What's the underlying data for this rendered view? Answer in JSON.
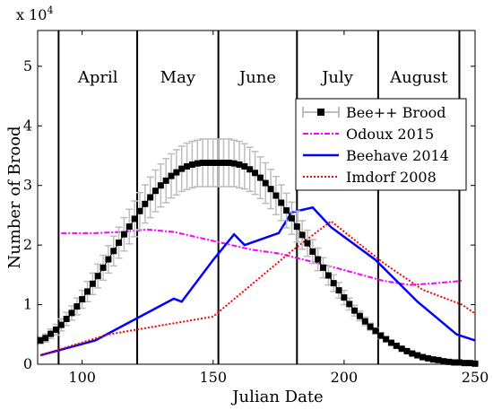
{
  "chart_data": {
    "type": "line",
    "xlabel": "Julian Date",
    "ylabel": "Number of Brood",
    "y_exponent": "x 10",
    "y_exponent_power": "4",
    "xlim": [
      83,
      250
    ],
    "ylim": [
      0,
      5.6
    ],
    "x_ticks": [
      100,
      150,
      200,
      250
    ],
    "y_ticks": [
      0,
      1,
      2,
      3,
      4,
      5
    ],
    "month_boundaries": [
      91,
      121,
      152,
      182,
      213,
      244
    ],
    "months": [
      {
        "label": "April",
        "x": 106
      },
      {
        "label": "May",
        "x": 136.5
      },
      {
        "label": "June",
        "x": 167
      },
      {
        "label": "July",
        "x": 197.5
      },
      {
        "label": "August",
        "x": 228.5
      }
    ],
    "legend_position": "top-right",
    "series": [
      {
        "name": "Bee++ Brood",
        "color": "#000000",
        "style": "squares-errorbars",
        "errorbar_color": "#bdbdbd",
        "x": [
          84,
          86,
          88,
          90,
          92,
          94,
          96,
          98,
          100,
          102,
          104,
          106,
          108,
          110,
          112,
          114,
          116,
          118,
          120,
          122,
          124,
          126,
          128,
          130,
          132,
          134,
          136,
          138,
          140,
          142,
          144,
          146,
          148,
          150,
          152,
          154,
          156,
          158,
          160,
          162,
          164,
          166,
          168,
          170,
          172,
          174,
          176,
          178,
          180,
          182,
          184,
          186,
          188,
          190,
          192,
          194,
          196,
          198,
          200,
          202,
          204,
          206,
          208,
          210,
          212,
          214,
          216,
          218,
          220,
          222,
          224,
          226,
          228,
          230,
          232,
          234,
          236,
          238,
          240,
          242,
          244,
          246,
          248,
          250
        ],
        "y": [
          0.4,
          0.44,
          0.51,
          0.58,
          0.66,
          0.76,
          0.86,
          0.97,
          1.09,
          1.22,
          1.35,
          1.48,
          1.62,
          1.76,
          1.9,
          2.04,
          2.18,
          2.31,
          2.44,
          2.57,
          2.69,
          2.8,
          2.91,
          3.0,
          3.08,
          3.16,
          3.22,
          3.28,
          3.32,
          3.35,
          3.37,
          3.38,
          3.38,
          3.38,
          3.38,
          3.38,
          3.38,
          3.37,
          3.35,
          3.32,
          3.27,
          3.21,
          3.13,
          3.04,
          2.94,
          2.83,
          2.71,
          2.58,
          2.45,
          2.31,
          2.17,
          2.03,
          1.89,
          1.76,
          1.62,
          1.49,
          1.36,
          1.24,
          1.12,
          1.01,
          0.9,
          0.81,
          0.72,
          0.63,
          0.56,
          0.48,
          0.42,
          0.36,
          0.31,
          0.26,
          0.22,
          0.18,
          0.15,
          0.12,
          0.1,
          0.08,
          0.07,
          0.05,
          0.04,
          0.03,
          0.03,
          0.02,
          0.02,
          0.01
        ],
        "err": [
          0.06,
          0.07,
          0.08,
          0.09,
          0.1,
          0.11,
          0.12,
          0.14,
          0.15,
          0.17,
          0.18,
          0.2,
          0.21,
          0.23,
          0.25,
          0.26,
          0.28,
          0.29,
          0.3,
          0.31,
          0.32,
          0.34,
          0.35,
          0.36,
          0.37,
          0.37,
          0.38,
          0.38,
          0.39,
          0.39,
          0.39,
          0.4,
          0.4,
          0.4,
          0.4,
          0.4,
          0.4,
          0.39,
          0.39,
          0.38,
          0.37,
          0.36,
          0.35,
          0.34,
          0.33,
          0.32,
          0.3,
          0.29,
          0.27,
          0.26,
          0.24,
          0.22,
          0.2,
          0.19,
          0.17,
          0.16,
          0.14,
          0.13,
          0.12,
          0.1,
          0.09,
          0.08,
          0.07,
          0.06,
          0.05,
          0.05,
          0.04,
          0.03,
          0.03,
          0.02,
          0.02,
          0.02,
          0.01,
          0.01,
          0.01,
          0.01,
          0.01,
          0.01,
          0.01,
          0.01,
          0.01,
          0.01,
          0.01,
          0.01
        ]
      },
      {
        "name": "Odoux 2015",
        "color": "#ff00ff",
        "style": "dashdot",
        "x": [
          92,
          105,
          115,
          125,
          135,
          145,
          155,
          165,
          175,
          185,
          195,
          205,
          215,
          225,
          235,
          245
        ],
        "y": [
          2.2,
          2.2,
          2.22,
          2.26,
          2.22,
          2.12,
          2.02,
          1.92,
          1.86,
          1.75,
          1.64,
          1.52,
          1.4,
          1.33,
          1.36,
          1.4
        ]
      },
      {
        "name": "Beehave 2014",
        "color": "#0000ff",
        "style": "solid",
        "x": [
          84,
          105,
          135,
          138,
          150,
          158,
          162,
          175,
          180,
          188,
          195,
          212,
          228,
          243,
          250
        ],
        "y": [
          0.15,
          0.4,
          1.1,
          1.05,
          1.75,
          2.18,
          2.0,
          2.2,
          2.55,
          2.63,
          2.3,
          1.75,
          1.05,
          0.5,
          0.4
        ]
      },
      {
        "name": "Imdorf 2008",
        "color": "#ff0000",
        "style": "dotted",
        "x": [
          84,
          110,
          130,
          150,
          180,
          195,
          215,
          230,
          245,
          250
        ],
        "y": [
          0.15,
          0.5,
          0.65,
          0.8,
          1.9,
          2.4,
          1.7,
          1.25,
          1.0,
          0.85
        ]
      }
    ]
  }
}
